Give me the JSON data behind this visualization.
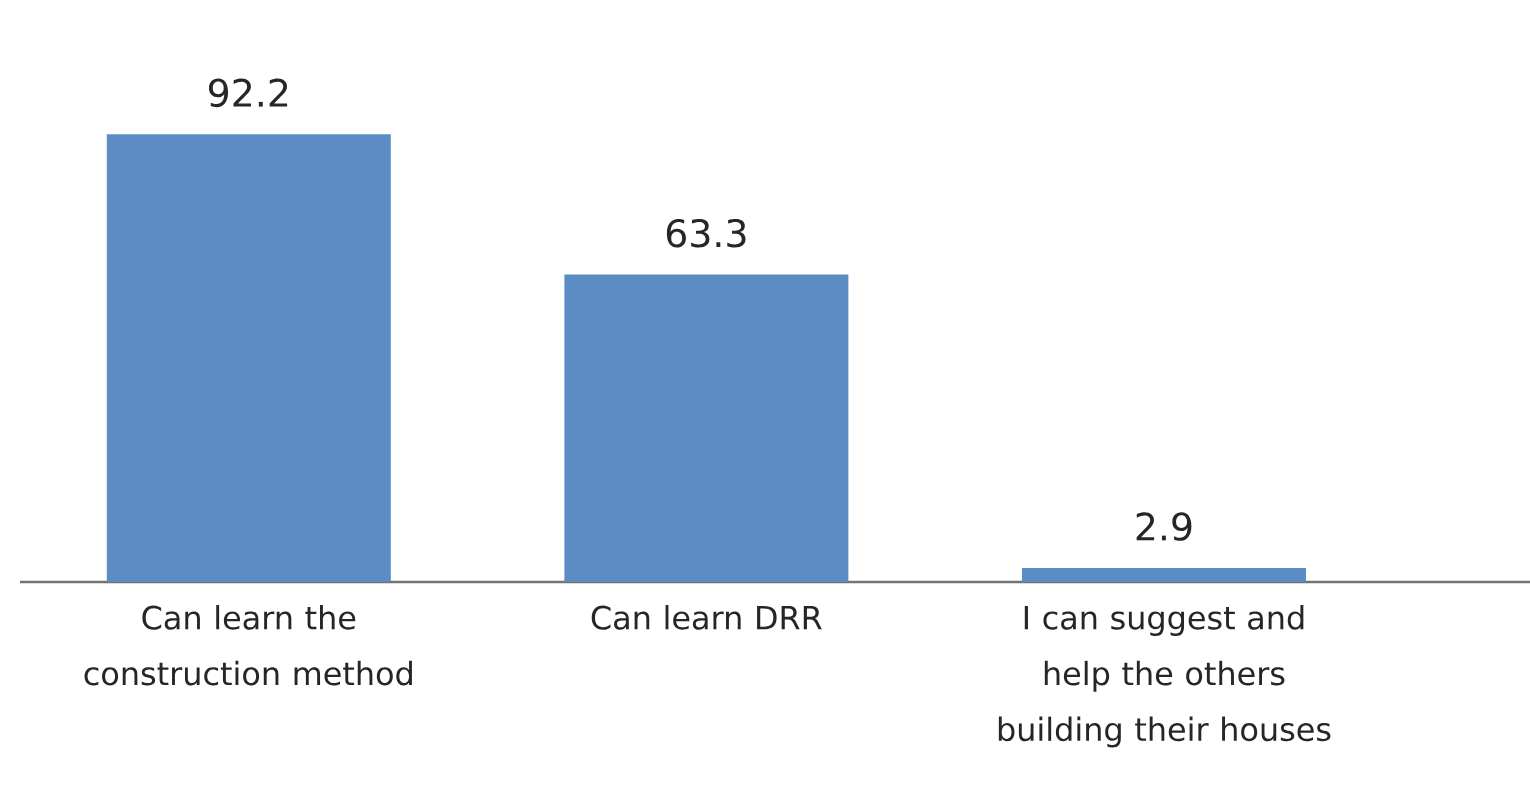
{
  "chart_data": {
    "type": "bar",
    "categories": [
      "Can learn the construction method",
      "Can learn DRR",
      "I can suggest and help the others building their houses"
    ],
    "values": [
      92.2,
      63.3,
      2.9
    ],
    "color": "#5b8cc4",
    "data_labels": true
  }
}
